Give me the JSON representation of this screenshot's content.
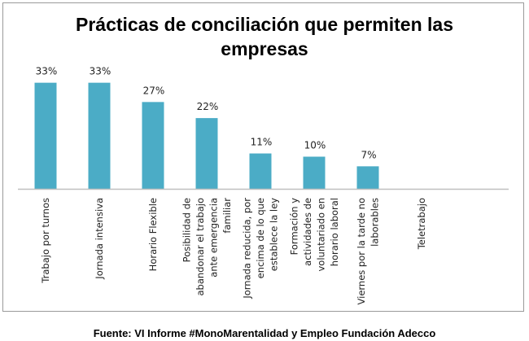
{
  "chart_data": {
    "type": "bar",
    "title_lines": [
      "Prácticas de conciliación que permiten las",
      "empresas"
    ],
    "categories": [
      [
        "Trabajo por turnos"
      ],
      [
        "Jornada intensiva"
      ],
      [
        "Horario Flexible"
      ],
      [
        "Posibilidad de",
        "abandonar el trabajo",
        "ante emergencia",
        "familiar"
      ],
      [
        "Jornada reducida, por",
        "encima de lo que",
        "establece la ley"
      ],
      [
        "Formación y",
        "actividades de",
        "voluntariado en",
        "horario laboral"
      ],
      [
        "Viernes por la tarde no",
        "laborables"
      ],
      [
        "Teletrabajo"
      ]
    ],
    "values": [
      33,
      33,
      27,
      22,
      11,
      10,
      7,
      null
    ],
    "data_labels": [
      "33%",
      "33%",
      "27%",
      "22%",
      "11%",
      "10%",
      "7%",
      ""
    ],
    "ylim": [
      0,
      35
    ],
    "grid": false,
    "bar_color": "#4bacc6",
    "xlabel": "",
    "ylabel": ""
  },
  "source": "Fuente: VI Informe #MonoMarentalidad y Empleo Fundación Adecco"
}
